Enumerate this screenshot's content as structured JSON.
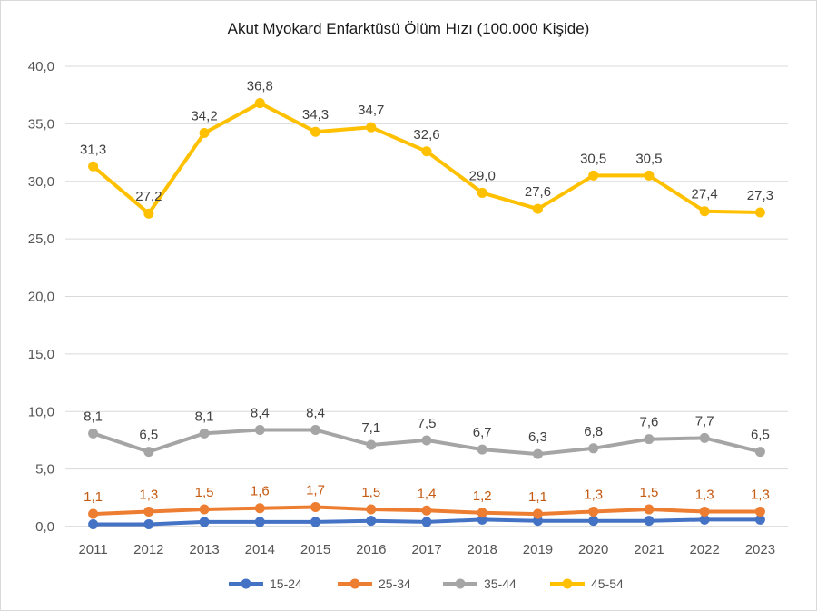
{
  "chart_data": {
    "type": "line",
    "title": "Akut Myokard Enfarktüsü Ölüm Hızı (100.000 Kişide)",
    "xlabel": "",
    "ylabel": "",
    "categories": [
      "2011",
      "2012",
      "2013",
      "2014",
      "2015",
      "2016",
      "2017",
      "2018",
      "2019",
      "2020",
      "2021",
      "2022",
      "2023"
    ],
    "ylim": [
      0,
      40
    ],
    "yticks": [
      "0,0",
      "5,0",
      "10,0",
      "15,0",
      "20,0",
      "25,0",
      "30,0",
      "35,0",
      "40,0"
    ],
    "grid": true,
    "legend_position": "bottom",
    "series": [
      {
        "name": "15-24",
        "color": "#4472c4",
        "values": [
          0.2,
          0.2,
          0.4,
          0.4,
          0.4,
          0.5,
          0.4,
          0.6,
          0.5,
          0.5,
          0.5,
          0.6,
          0.6
        ],
        "labels": []
      },
      {
        "name": "25-34",
        "color": "#ed7d31",
        "label_color": "#c55a11",
        "values": [
          1.1,
          1.3,
          1.5,
          1.6,
          1.7,
          1.5,
          1.4,
          1.2,
          1.1,
          1.3,
          1.5,
          1.3,
          1.3
        ],
        "labels": [
          "1,1",
          "1,3",
          "1,5",
          "1,6",
          "1,7",
          "1,5",
          "1,4",
          "1,2",
          "1,1",
          "1,3",
          "1,5",
          "1,3",
          "1,3"
        ]
      },
      {
        "name": "35-44",
        "color": "#a5a5a5",
        "label_color": "#404040",
        "values": [
          8.1,
          6.5,
          8.1,
          8.4,
          8.4,
          7.1,
          7.5,
          6.7,
          6.3,
          6.8,
          7.6,
          7.7,
          6.5
        ],
        "labels": [
          "8,1",
          "6,5",
          "8,1",
          "8,4",
          "8,4",
          "7,1",
          "7,5",
          "6,7",
          "6,3",
          "6,8",
          "7,6",
          "7,7",
          "6,5"
        ]
      },
      {
        "name": "45-54",
        "color": "#ffc000",
        "label_color": "#404040",
        "values": [
          31.3,
          27.2,
          34.2,
          36.8,
          34.3,
          34.7,
          32.6,
          29.0,
          27.6,
          30.5,
          30.5,
          27.4,
          27.3
        ],
        "labels": [
          "31,3",
          "27,2",
          "34,2",
          "36,8",
          "34,3",
          "34,7",
          "32,6",
          "29,0",
          "27,6",
          "30,5",
          "30,5",
          "27,4",
          "27,3"
        ]
      }
    ]
  }
}
